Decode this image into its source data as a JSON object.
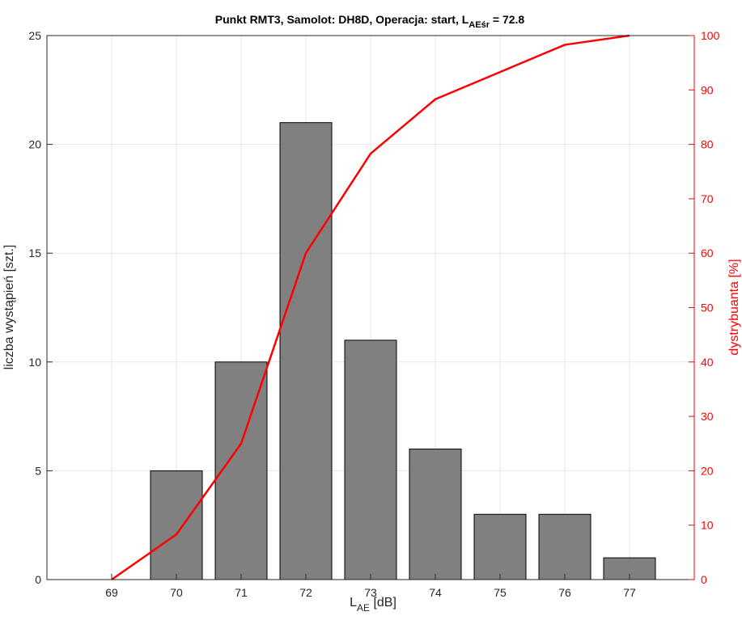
{
  "chart_data": {
    "type": "bar",
    "title": {
      "prefix": "Punkt RMT3, Samolot: DH8D, Operacja: start, L",
      "subscript": "AEśr",
      "suffix": " = 72.8"
    },
    "xlabel": {
      "main": "L",
      "subscript": "AE",
      "suffix": " [dB]"
    },
    "ylabel_left": "liczba wystąpień [szt.]",
    "ylabel_right": "dystrybuanta [%]",
    "categories": [
      69,
      70,
      71,
      72,
      73,
      74,
      75,
      76,
      77
    ],
    "xlim": [
      68,
      78
    ],
    "ylim_left": [
      0,
      25
    ],
    "ylim_right": [
      0,
      100
    ],
    "yticks_left": [
      0,
      5,
      10,
      15,
      20,
      25
    ],
    "yticks_right": [
      0,
      10,
      20,
      30,
      40,
      50,
      60,
      70,
      80,
      90,
      100
    ],
    "grid": true,
    "series": [
      {
        "type": "bar",
        "axis": "left",
        "values": [
          0,
          5,
          10,
          21,
          11,
          6,
          3,
          3,
          1
        ],
        "color": "#808080"
      },
      {
        "type": "line",
        "axis": "right",
        "values": [
          0,
          8.3,
          25,
          60,
          78.3,
          88.3,
          93.3,
          98.3,
          100
        ],
        "color": "#ff0000"
      }
    ]
  }
}
